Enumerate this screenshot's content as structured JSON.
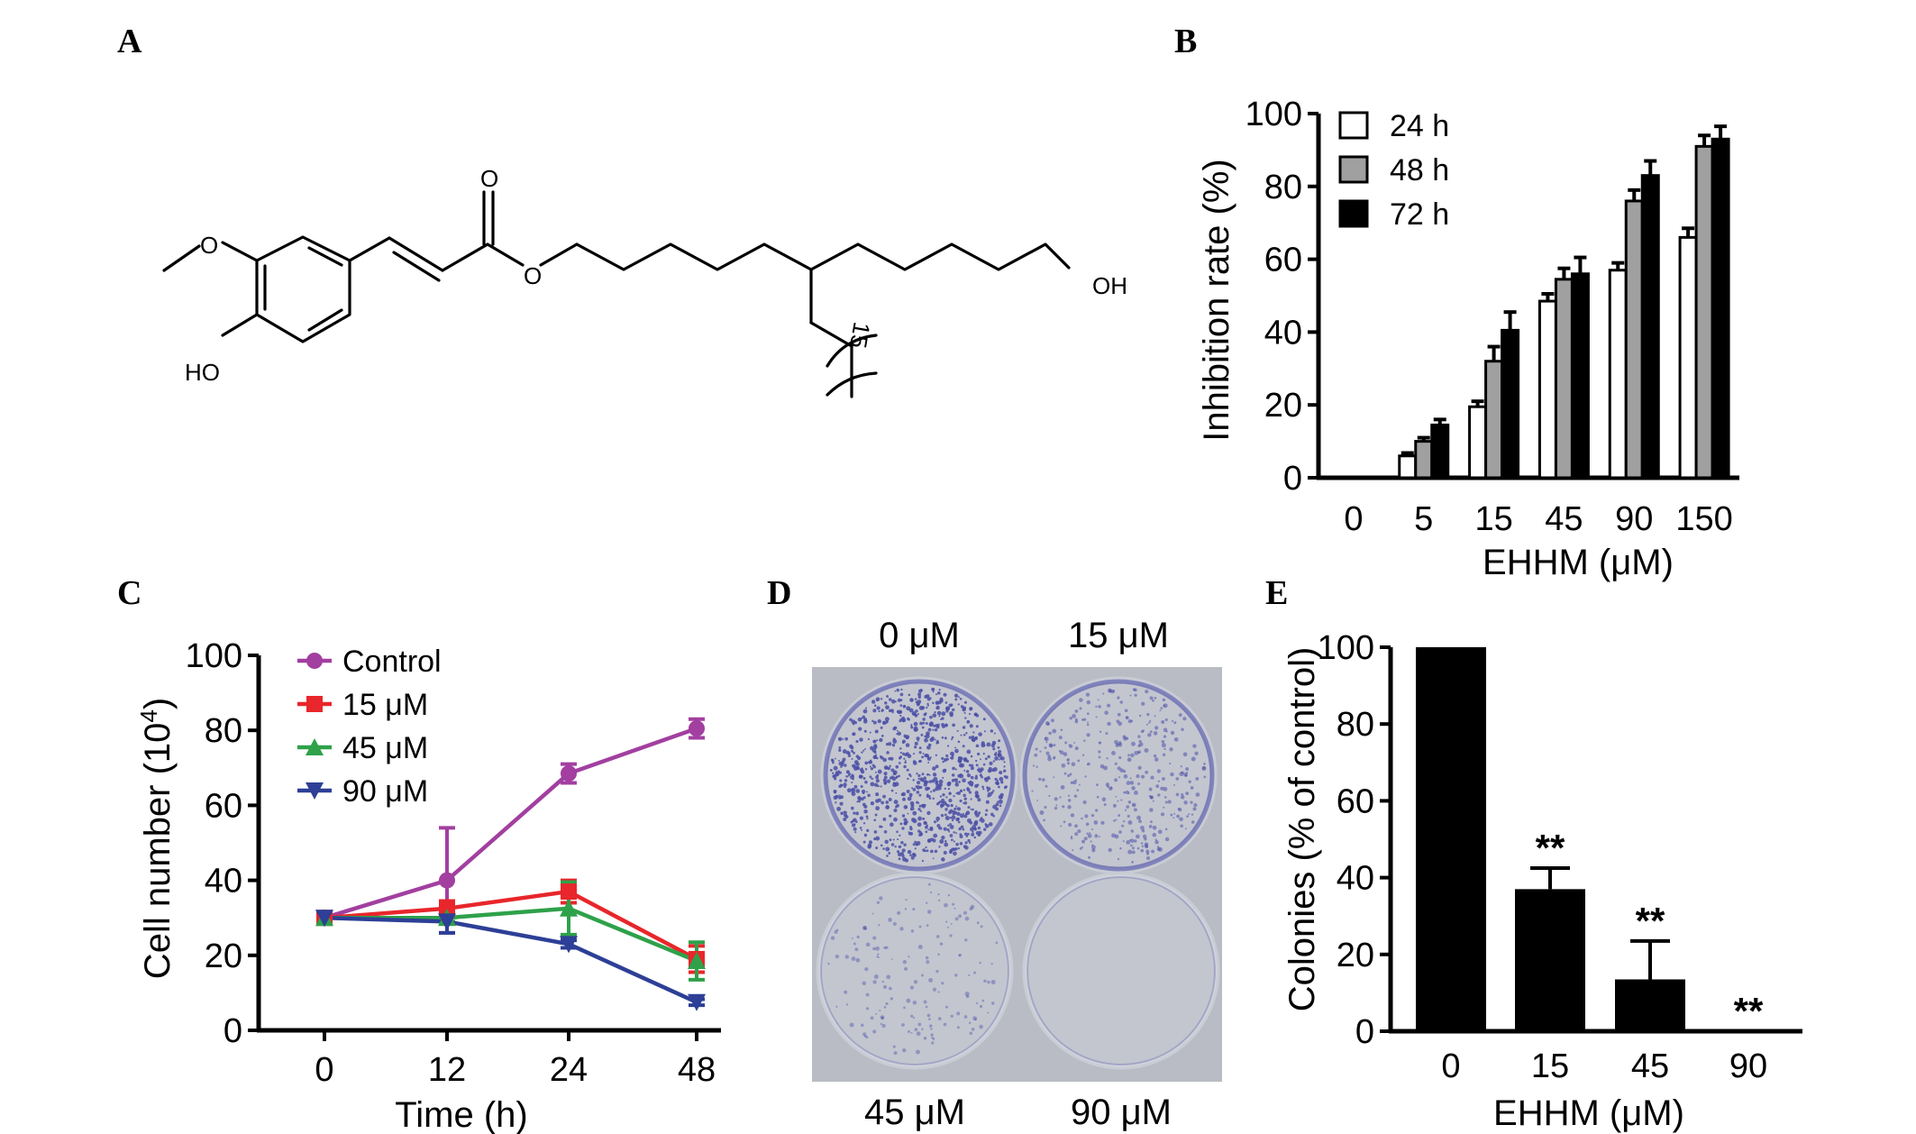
{
  "panels": {
    "A": "A",
    "B": "B",
    "C": "C",
    "D": "D",
    "E": "E"
  },
  "structure": {
    "labels": {
      "carbonyl_o": "O",
      "ester_o": "O",
      "methoxy_o": "O",
      "hydroxyl": "HO",
      "terminal_oh": "OH",
      "repeat_count": "15"
    }
  },
  "plates": {
    "labels": [
      "0 μM",
      "15 μM",
      "45 μM",
      "90 μM"
    ],
    "colors": {
      "background": "#b9bcc4",
      "stain": "#4b4fa6",
      "dish_rim": "#c9ccd4"
    },
    "colony_density": [
      1.0,
      0.37,
      0.14,
      0.0
    ]
  },
  "chart_data": [
    {
      "panel": "B",
      "type": "bar",
      "categories": [
        "0",
        "5",
        "15",
        "45",
        "90",
        "150"
      ],
      "series": [
        {
          "name": "24 h",
          "values": [
            0,
            6,
            19.5,
            48.5,
            57,
            66
          ],
          "errors": [
            0,
            0.8,
            1.5,
            2,
            2,
            2.5
          ],
          "color": "#ffffff"
        },
        {
          "name": "48 h",
          "values": [
            0,
            10,
            32,
            54.5,
            76,
            91
          ],
          "errors": [
            0,
            1,
            4,
            3,
            3,
            3
          ],
          "color": "#a0a0a0"
        },
        {
          "name": "72 h",
          "values": [
            0,
            14.5,
            40.5,
            56,
            83,
            93
          ],
          "errors": [
            0,
            1.5,
            5,
            4.5,
            4,
            3.5
          ],
          "color": "#000000"
        }
      ],
      "xlabel": "EHHM (μM)",
      "ylabel": "Inhibition rate (%)",
      "ylim": [
        0,
        100
      ],
      "yticks": [
        0,
        20,
        40,
        60,
        80,
        100
      ],
      "legend": "top-left"
    },
    {
      "panel": "C",
      "type": "line",
      "x": [
        0,
        12,
        24,
        48
      ],
      "xticks": [
        "0",
        "12",
        "24",
        "48"
      ],
      "series": [
        {
          "name": "Control",
          "values": [
            30,
            40,
            68.5,
            80.5
          ],
          "errors": [
            1,
            14,
            2.5,
            2.5
          ],
          "color": "#a23fa0",
          "marker": "circle"
        },
        {
          "name": "15 μM",
          "values": [
            30,
            32.5,
            37,
            19
          ],
          "errors": [
            1,
            2,
            3,
            3.5
          ],
          "color": "#e8262b",
          "marker": "square"
        },
        {
          "name": "45 μM",
          "values": [
            30,
            30,
            32.5,
            18.5
          ],
          "errors": [
            1,
            1,
            7,
            5
          ],
          "color": "#2ea14a",
          "marker": "triangle-up"
        },
        {
          "name": "90 μM",
          "values": [
            30,
            29,
            23,
            7.5
          ],
          "errors": [
            1,
            3,
            1,
            0.8
          ],
          "color": "#2d3f96",
          "marker": "triangle-down"
        }
      ],
      "xlabel": "Time (h)",
      "ylabel_main": "Cell number (10",
      "ylabel_sup": "4",
      "ylabel_end": ")",
      "ylim": [
        0,
        100
      ],
      "yticks": [
        0,
        20,
        40,
        60,
        80,
        100
      ],
      "legend": "top-left"
    },
    {
      "panel": "E",
      "type": "bar",
      "categories": [
        "0",
        "15",
        "45",
        "90"
      ],
      "values": [
        100,
        37,
        13.5,
        0
      ],
      "errors": [
        0,
        5.5,
        10,
        0
      ],
      "significance": [
        "",
        "**",
        "**",
        "**"
      ],
      "color": "#000000",
      "xlabel": "EHHM (μM)",
      "ylabel": "Colonies (% of control)",
      "ylim": [
        0,
        100
      ],
      "yticks": [
        0,
        20,
        40,
        60,
        80,
        100
      ]
    }
  ]
}
